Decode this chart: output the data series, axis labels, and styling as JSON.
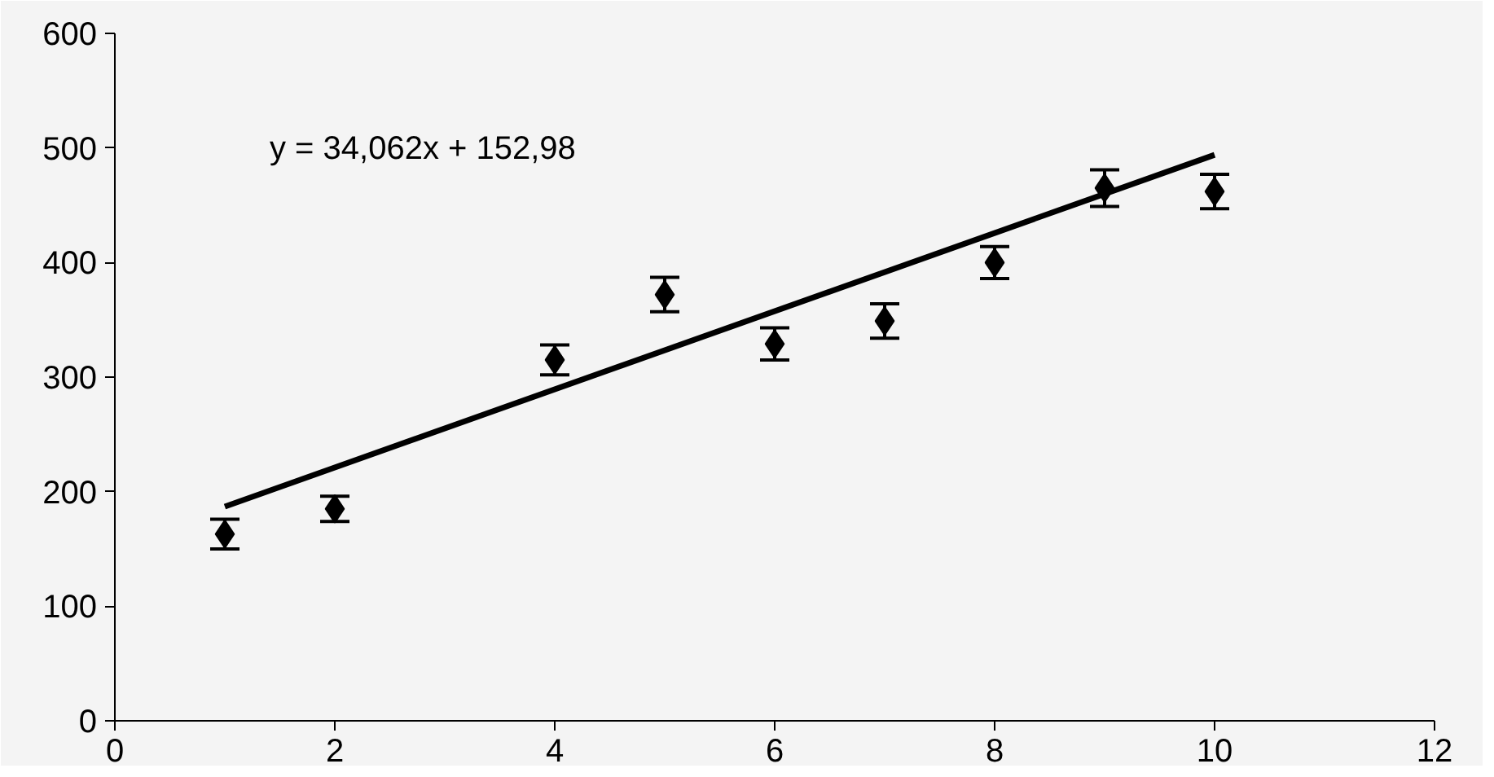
{
  "chart_data": {
    "type": "scatter",
    "xlim": [
      0,
      12
    ],
    "xticks": [
      0,
      2,
      4,
      6,
      8,
      10,
      12
    ],
    "ylim": [
      0,
      600
    ],
    "yticks": [
      0,
      100,
      200,
      300,
      400,
      500,
      600
    ],
    "grid": false,
    "series": [
      {
        "color": "#000000",
        "marker": "diamond",
        "x": [
          1,
          2,
          4,
          5,
          6,
          7,
          8,
          9,
          10
        ],
        "values": [
          163,
          185,
          315,
          372,
          329,
          349,
          400,
          465,
          462
        ],
        "errors": [
          13,
          11,
          13,
          15,
          14,
          15,
          14,
          16,
          15
        ]
      },
      {
        "type": "line",
        "color": "#000000",
        "x": [
          1,
          10
        ],
        "values": [
          187,
          494
        ],
        "line_style": "solid"
      }
    ],
    "annotations": [
      "y = 34,062x + 152,98"
    ]
  }
}
